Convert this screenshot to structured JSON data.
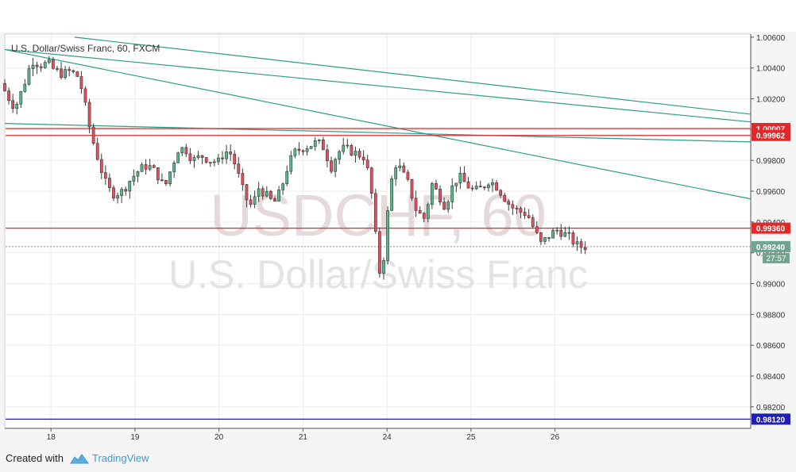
{
  "chart_data": {
    "type": "candlestick",
    "title": "U.S. Dollar/Swiss Franc, 60, FXCM",
    "watermark_symbol": "USDCHF, 60",
    "watermark_name": "U.S. Dollar/Swiss Franc",
    "x_ticks": [
      "18",
      "19",
      "20",
      "21",
      "24",
      "25",
      "26"
    ],
    "y_ticks": [
      "1.00600",
      "1.00400",
      "1.00200",
      "1.00000",
      "0.99800",
      "0.99600",
      "0.99400",
      "0.99200",
      "0.99000",
      "0.98800",
      "0.98600",
      "0.98400",
      "0.98200"
    ],
    "ylim": [
      0.9806,
      1.0062
    ],
    "x_range": [
      17.45,
      26.33
    ],
    "current_price": {
      "value": 0.9924,
      "label": "0.99240",
      "countdown": "27:57",
      "color": "#6fa58f"
    },
    "horizontal_lines": [
      {
        "value": 1.00007,
        "label": "1.00007",
        "color": "#e0292b"
      },
      {
        "value": 0.99962,
        "label": "0.99962",
        "color": "#e0292b"
      },
      {
        "value": 0.9936,
        "label": "0.99360",
        "color": "#e0292b"
      },
      {
        "value": 0.9812,
        "label": "0.98120",
        "color": "#1f1fb5"
      }
    ],
    "trend_lines": [
      {
        "from": [
          18.28,
          1.006
        ],
        "to": [
          26.33,
          1.001
        ]
      },
      {
        "from": [
          17.45,
          1.0052
        ],
        "to": [
          26.33,
          1.0005
        ]
      },
      {
        "from": [
          17.45,
          1.0052
        ],
        "to": [
          26.33,
          0.9955
        ]
      },
      {
        "from": [
          17.45,
          1.0004
        ],
        "to": [
          26.33,
          0.9992
        ]
      }
    ],
    "colors": {
      "up": "#53b987",
      "down": "#eb4d5c",
      "wick": "#3a3a3a",
      "trend": "#2e9c86"
    },
    "anchors": [
      [
        17.45,
        1.003
      ],
      [
        17.55,
        1.002
      ],
      [
        17.62,
        1.0014
      ],
      [
        17.72,
        1.0028
      ],
      [
        17.82,
        1.0045
      ],
      [
        17.92,
        1.0042
      ],
      [
        18.02,
        1.0043
      ],
      [
        18.08,
        1.0039
      ],
      [
        18.18,
        1.0036
      ],
      [
        18.28,
        1.0038
      ],
      [
        18.38,
        1.0034
      ],
      [
        18.44,
        1.002
      ],
      [
        18.5,
        1.0003
      ],
      [
        18.56,
        0.999
      ],
      [
        18.64,
        0.9975
      ],
      [
        18.72,
        0.9962
      ],
      [
        18.8,
        0.9958
      ],
      [
        18.9,
        0.996
      ],
      [
        19.0,
        0.9968
      ],
      [
        19.1,
        0.9974
      ],
      [
        19.2,
        0.9977
      ],
      [
        19.3,
        0.9972
      ],
      [
        19.4,
        0.9962
      ],
      [
        19.48,
        0.9975
      ],
      [
        19.56,
        0.9987
      ],
      [
        19.64,
        0.9988
      ],
      [
        19.74,
        0.998
      ],
      [
        19.84,
        0.9983
      ],
      [
        19.94,
        0.998
      ],
      [
        20.04,
        0.9979
      ],
      [
        20.12,
        0.9986
      ],
      [
        20.2,
        0.9984
      ],
      [
        20.28,
        0.997
      ],
      [
        20.36,
        0.9956
      ],
      [
        20.44,
        0.995
      ],
      [
        20.52,
        0.9962
      ],
      [
        20.6,
        0.9958
      ],
      [
        20.7,
        0.9952
      ],
      [
        20.78,
        0.996
      ],
      [
        20.86,
        0.9975
      ],
      [
        20.94,
        0.9985
      ],
      [
        21.04,
        0.9988
      ],
      [
        21.14,
        0.999
      ],
      [
        21.22,
        0.9992
      ],
      [
        21.3,
        0.9988
      ],
      [
        21.38,
        0.9975
      ],
      [
        21.46,
        0.9985
      ],
      [
        21.54,
        0.9988
      ],
      [
        21.62,
        0.9986
      ],
      [
        21.7,
        0.9984
      ],
      [
        21.78,
        0.9982
      ],
      [
        21.84,
        0.9968
      ],
      [
        21.88,
        0.9952
      ],
      [
        21.93,
        0.992
      ],
      [
        21.98,
        0.99
      ],
      [
        22.03,
        0.993
      ],
      [
        22.08,
        0.996
      ],
      [
        22.14,
        0.9978
      ],
      [
        22.2,
        0.9975
      ],
      [
        22.3,
        0.9965
      ],
      [
        22.4,
        0.9947
      ],
      [
        22.5,
        0.9942
      ],
      [
        22.58,
        0.9965
      ],
      [
        22.66,
        0.9958
      ],
      [
        22.74,
        0.995
      ],
      [
        22.82,
        0.9962
      ],
      [
        22.9,
        0.997
      ],
      [
        22.98,
        0.9965
      ],
      [
        23.08,
        0.996
      ],
      [
        23.18,
        0.9962
      ],
      [
        23.26,
        0.9967
      ],
      [
        23.34,
        0.9964
      ],
      [
        23.42,
        0.9958
      ],
      [
        23.52,
        0.995
      ],
      [
        23.62,
        0.9947
      ],
      [
        23.72,
        0.9945
      ],
      [
        23.8,
        0.9935
      ],
      [
        23.88,
        0.9926
      ],
      [
        23.96,
        0.993
      ],
      [
        24.06,
        0.9935
      ],
      [
        24.14,
        0.9933
      ],
      [
        24.22,
        0.993
      ],
      [
        24.3,
        0.9925
      ],
      [
        24.36,
        0.9924
      ]
    ]
  },
  "footer": {
    "created_with": "Created with",
    "brand": "TradingView",
    "brand_color": "#3d9bd6"
  }
}
